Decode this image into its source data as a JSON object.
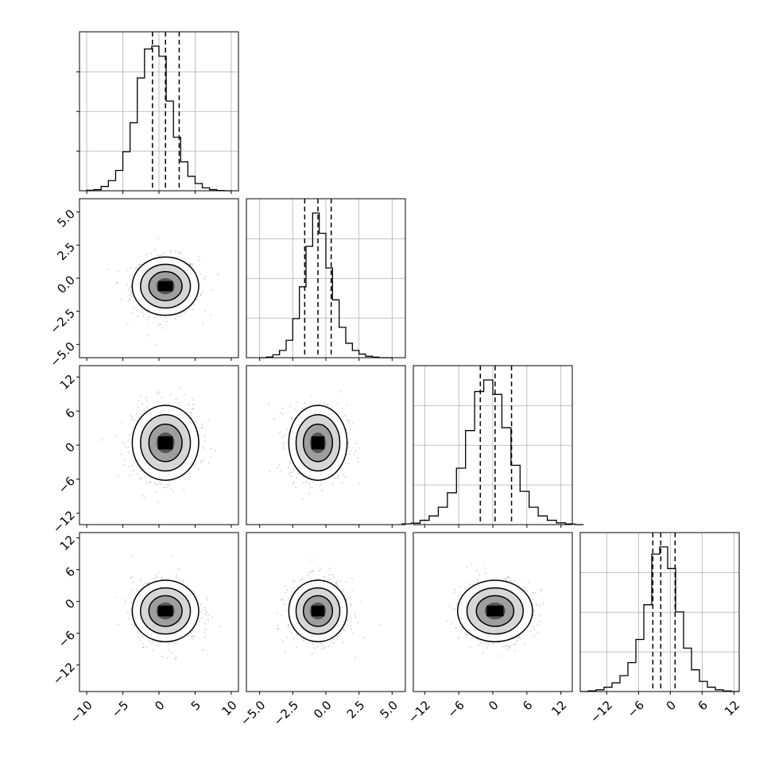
{
  "chart_data": {
    "type": "scatter",
    "subtype": "corner-plot",
    "n_params": 4,
    "grid": true,
    "histogram_quantile_lines": [
      [
        -0.9,
        0.9,
        2.8
      ],
      [
        -1.6,
        -0.6,
        0.4
      ],
      [
        -2.2,
        0.4,
        3.3
      ],
      [
        -3.3,
        -1.8,
        0.9
      ]
    ],
    "hist_bins": [
      {
        "edges_range": [
          -10,
          10
        ],
        "bins": 20,
        "counts": [
          0.003,
          0.008,
          0.03,
          0.07,
          0.14,
          0.27,
          0.47,
          0.78,
          0.98,
          1.0,
          0.93,
          0.62,
          0.37,
          0.2,
          0.1,
          0.05,
          0.02,
          0.008,
          0.002,
          0.0
        ]
      },
      {
        "edges_range": [
          -5,
          5
        ],
        "bins": 20,
        "counts": [
          0.0,
          0.005,
          0.02,
          0.05,
          0.12,
          0.27,
          0.49,
          0.77,
          1.0,
          0.86,
          0.62,
          0.4,
          0.21,
          0.1,
          0.05,
          0.025,
          0.01,
          0.004,
          0.0,
          0.0
        ]
      },
      {
        "edges_range": [
          -16,
          16
        ],
        "bins": 20,
        "counts": [
          0.005,
          0.01,
          0.03,
          0.06,
          0.12,
          0.22,
          0.39,
          0.65,
          0.92,
          1.0,
          0.9,
          0.67,
          0.41,
          0.23,
          0.12,
          0.06,
          0.03,
          0.012,
          0.005,
          0.0
        ]
      },
      {
        "edges_range": [
          -17,
          13
        ],
        "bins": 20,
        "counts": [
          0.0,
          0.005,
          0.012,
          0.03,
          0.06,
          0.11,
          0.2,
          0.36,
          0.6,
          0.95,
          1.0,
          0.85,
          0.55,
          0.3,
          0.15,
          0.07,
          0.03,
          0.012,
          0.004,
          0.0
        ]
      }
    ],
    "axes": [
      {
        "lim": [
          -11,
          11
        ],
        "ticks": [
          -10,
          -5,
          0,
          5,
          10
        ],
        "tick_labels": [
          "−10",
          "−5",
          "0",
          "5",
          "10"
        ]
      },
      {
        "lim": [
          -6,
          6
        ],
        "ticks": [
          -5.0,
          -2.5,
          0.0,
          2.5,
          5.0
        ],
        "tick_labels": [
          "−5.0",
          "−2.5",
          "0.0",
          "2.5",
          "5.0"
        ]
      },
      {
        "lim": [
          -14,
          14
        ],
        "ticks": [
          -12,
          -6,
          0,
          6,
          12
        ],
        "tick_labels": [
          "−12",
          "−6",
          "0",
          "6",
          "12"
        ]
      },
      {
        "lim": [
          -17,
          13
        ],
        "ticks": [
          -12,
          -6,
          0,
          6,
          12
        ],
        "tick_labels": [
          "−12",
          "−6",
          "0",
          "6",
          "12"
        ]
      }
    ],
    "centers": [
      0.9,
      -0.6,
      0.4,
      -1.8
    ],
    "spreads": [
      2.3,
      1.1,
      3.3,
      2.9
    ]
  }
}
